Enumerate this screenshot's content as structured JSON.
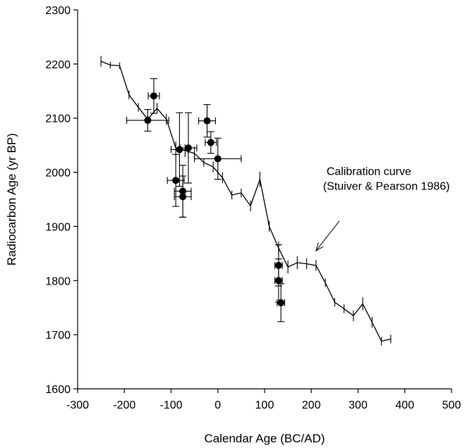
{
  "chart_data": {
    "type": "scatter",
    "title": "",
    "xlabel": "Calendar Age (BC/AD)",
    "ylabel": "Radiocarbon Age (yr BP)",
    "xlim": [
      -300,
      500
    ],
    "ylim": [
      1600,
      2300
    ],
    "x_ticks": [
      -300,
      -200,
      -100,
      0,
      100,
      200,
      300,
      400,
      500
    ],
    "y_ticks": [
      1600,
      1700,
      1800,
      1900,
      2000,
      2100,
      2200,
      2300
    ],
    "grid": false,
    "legend": "none",
    "colors": {
      "line": "#000000",
      "marker": "#000000"
    },
    "series": [
      {
        "kind": "line-with-error-bars",
        "x": [
          -250,
          -230,
          -210,
          -190,
          -170,
          -150,
          -130,
          -110,
          -90,
          -70,
          -50,
          -30,
          -10,
          10,
          30,
          50,
          70,
          90,
          110,
          130,
          150,
          170,
          190,
          210,
          230,
          250,
          270,
          290,
          310,
          330,
          350,
          370
        ],
        "y": [
          2205,
          2198,
          2197,
          2143,
          2120,
          2098,
          2118,
          2098,
          2045,
          2040,
          2035,
          2018,
          2010,
          1990,
          1958,
          1962,
          1938,
          1987,
          1900,
          1860,
          1825,
          1833,
          1831,
          1828,
          1796,
          1760,
          1748,
          1735,
          1757,
          1723,
          1688,
          1692
        ],
        "err": [
          10,
          6,
          6,
          8,
          8,
          8,
          10,
          10,
          12,
          12,
          12,
          8,
          10,
          10,
          8,
          8,
          10,
          14,
          10,
          12,
          12,
          12,
          10,
          10,
          8,
          8,
          8,
          10,
          12,
          10,
          8,
          8
        ]
      },
      {
        "kind": "points-with-xy-error-bars",
        "x": [
          -137,
          -150,
          -90,
          -82,
          -75,
          -75,
          -63,
          -23,
          -15,
          0,
          130,
          130,
          135
        ],
        "y": [
          2141,
          2096,
          1985,
          2042,
          1965,
          1955,
          2045,
          2095,
          2055,
          2025,
          1828,
          1800,
          1759
        ],
        "xerr": [
          12,
          45,
          18,
          18,
          18,
          18,
          18,
          18,
          12,
          50,
          8,
          8,
          8
        ],
        "yerr": [
          32,
          20,
          48,
          68,
          48,
          38,
          65,
          30,
          20,
          38,
          38,
          40,
          35
        ]
      }
    ],
    "annotations": [
      {
        "text_lines": [
          "Calibration curve",
          "(Stuiver & Pearson 1986)"
        ],
        "text_at": [
          225,
          1995
        ],
        "arrow_from": [
          260,
          1910
        ],
        "arrow_to": [
          210,
          1855
        ]
      }
    ]
  }
}
